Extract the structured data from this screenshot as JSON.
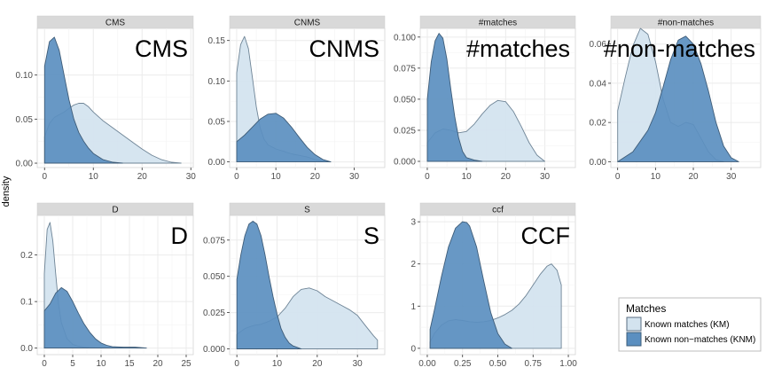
{
  "chart_data": {
    "type": "area",
    "ylabel": "density",
    "colors": {
      "km": "#d3e3ef",
      "knm": "#5b8fc0",
      "strip": "#d9d9d9",
      "grid": "#ebebeb"
    },
    "legend": {
      "title": "Matches",
      "placement": "bottom-right",
      "entries": [
        "Known matches (KM)",
        "Known non−matches (KNM)"
      ]
    },
    "panels": [
      {
        "strip": "CMS",
        "label": "CMS",
        "xlim": [
          -1.5,
          30.5
        ],
        "ylim": [
          -0.005,
          0.153
        ],
        "x_ticks": [
          0,
          10,
          20,
          30
        ],
        "y_ticks": [
          0.0,
          0.05,
          0.1
        ],
        "y_labels": [
          "0.00",
          "0.05",
          "0.10"
        ],
        "km": {
          "x": [
            0,
            1,
            2,
            3,
            4,
            5,
            6,
            7,
            8,
            9,
            10,
            12,
            14,
            16,
            18,
            20,
            22,
            24,
            26,
            28
          ],
          "y": [
            0.03,
            0.045,
            0.052,
            0.055,
            0.058,
            0.062,
            0.066,
            0.068,
            0.068,
            0.064,
            0.058,
            0.048,
            0.04,
            0.032,
            0.024,
            0.016,
            0.009,
            0.004,
            0.001,
            0.0
          ]
        },
        "knm": {
          "x": [
            0,
            1,
            2,
            3,
            4,
            5,
            6,
            7,
            8,
            9,
            10,
            12,
            14,
            16
          ],
          "y": [
            0.11,
            0.138,
            0.143,
            0.128,
            0.1,
            0.072,
            0.05,
            0.035,
            0.025,
            0.017,
            0.011,
            0.004,
            0.001,
            0.0
          ]
        }
      },
      {
        "strip": "CNMS",
        "label": "CNMS",
        "xlim": [
          -1.8,
          37.8
        ],
        "ylim": [
          -0.007,
          0.165
        ],
        "x_ticks": [
          0,
          10,
          20,
          30
        ],
        "y_ticks": [
          0.0,
          0.05,
          0.1,
          0.15
        ],
        "y_labels": [
          "0.00",
          "0.05",
          "0.10",
          "0.15"
        ],
        "km": {
          "x": [
            0,
            1,
            2,
            3,
            4,
            5,
            6,
            7,
            8,
            10,
            12,
            14,
            16,
            18,
            20,
            22,
            24
          ],
          "y": [
            0.11,
            0.145,
            0.155,
            0.14,
            0.105,
            0.068,
            0.042,
            0.028,
            0.021,
            0.016,
            0.013,
            0.01,
            0.008,
            0.006,
            0.003,
            0.001,
            0.0
          ]
        },
        "knm": {
          "x": [
            0,
            2,
            4,
            6,
            8,
            10,
            12,
            14,
            16,
            18,
            20,
            22,
            24
          ],
          "y": [
            0.025,
            0.033,
            0.043,
            0.053,
            0.059,
            0.06,
            0.054,
            0.043,
            0.03,
            0.018,
            0.009,
            0.003,
            0.0
          ]
        }
      },
      {
        "strip": "#matches",
        "label": "#matches",
        "xlim": [
          -1.8,
          37.8
        ],
        "ylim": [
          -0.005,
          0.107
        ],
        "x_ticks": [
          0,
          10,
          20,
          30
        ],
        "y_ticks": [
          0.0,
          0.025,
          0.05,
          0.075,
          0.1
        ],
        "y_labels": [
          "0.000",
          "0.025",
          "0.050",
          "0.075",
          "0.100"
        ],
        "km": {
          "x": [
            0,
            2,
            4,
            6,
            8,
            10,
            12,
            14,
            16,
            18,
            20,
            22,
            24,
            26,
            28,
            30
          ],
          "y": [
            0.015,
            0.023,
            0.026,
            0.025,
            0.023,
            0.024,
            0.03,
            0.038,
            0.045,
            0.049,
            0.048,
            0.04,
            0.028,
            0.015,
            0.005,
            0.0
          ]
        },
        "knm": {
          "x": [
            0,
            1,
            2,
            3,
            4,
            5,
            6,
            7,
            8,
            9,
            10,
            12,
            14
          ],
          "y": [
            0.05,
            0.08,
            0.097,
            0.103,
            0.099,
            0.082,
            0.058,
            0.036,
            0.019,
            0.008,
            0.003,
            0.001,
            0.0
          ]
        }
      },
      {
        "strip": "#non-matches",
        "label": "#non-matches",
        "xlim": [
          -1.8,
          37.8
        ],
        "ylim": [
          -0.003,
          0.068
        ],
        "x_ticks": [
          0,
          10,
          20,
          30
        ],
        "y_ticks": [
          0.0,
          0.02,
          0.04,
          0.06
        ],
        "y_labels": [
          "0.00",
          "0.02",
          "0.04",
          "0.06"
        ],
        "km": {
          "x": [
            0,
            2,
            4,
            6,
            8,
            10,
            12,
            14,
            16,
            18,
            20,
            22,
            24,
            26,
            28
          ],
          "y": [
            0.026,
            0.043,
            0.059,
            0.068,
            0.065,
            0.051,
            0.032,
            0.02,
            0.018,
            0.02,
            0.019,
            0.012,
            0.005,
            0.001,
            0.0
          ]
        },
        "knm": {
          "x": [
            0,
            4,
            8,
            10,
            12,
            14,
            16,
            18,
            20,
            22,
            24,
            26,
            28,
            30,
            32
          ],
          "y": [
            0.0,
            0.005,
            0.016,
            0.025,
            0.038,
            0.052,
            0.062,
            0.064,
            0.06,
            0.05,
            0.036,
            0.02,
            0.008,
            0.002,
            0.0
          ]
        }
      },
      {
        "strip": "D",
        "label": "D",
        "xlim": [
          -1.25,
          26.25
        ],
        "ylim": [
          -0.014,
          0.285
        ],
        "x_ticks": [
          0,
          5,
          10,
          15,
          20,
          25
        ],
        "y_ticks": [
          0.0,
          0.1,
          0.2
        ],
        "y_labels": [
          "0.0",
          "0.1",
          "0.2"
        ],
        "km": {
          "x": [
            0,
            0.5,
            1,
            1.5,
            2,
            2.5,
            3,
            4,
            5,
            6,
            7,
            8,
            10,
            12
          ],
          "y": [
            0.16,
            0.255,
            0.27,
            0.23,
            0.16,
            0.095,
            0.055,
            0.02,
            0.008,
            0.004,
            0.002,
            0.001,
            0.0,
            0.0
          ]
        },
        "knm": {
          "x": [
            0,
            1,
            2,
            3,
            4,
            5,
            6,
            7,
            8,
            9,
            10,
            11,
            12,
            14,
            16,
            18
          ],
          "y": [
            0.08,
            0.095,
            0.118,
            0.13,
            0.122,
            0.1,
            0.075,
            0.052,
            0.034,
            0.02,
            0.011,
            0.006,
            0.003,
            0.002,
            0.002,
            0.0
          ]
        }
      },
      {
        "strip": "S",
        "label": "S",
        "xlim": [
          -1.8,
          36.8
        ],
        "ylim": [
          -0.004,
          0.092
        ],
        "x_ticks": [
          0,
          10,
          20,
          30
        ],
        "y_ticks": [
          0.0,
          0.025,
          0.05,
          0.075
        ],
        "y_labels": [
          "0.000",
          "0.025",
          "0.050",
          "0.075"
        ],
        "km": {
          "x": [
            0,
            2,
            4,
            6,
            8,
            10,
            12,
            14,
            16,
            18,
            20,
            22,
            24,
            26,
            28,
            30,
            32,
            34,
            35
          ],
          "y": [
            0.01,
            0.014,
            0.016,
            0.017,
            0.019,
            0.022,
            0.028,
            0.036,
            0.041,
            0.042,
            0.04,
            0.036,
            0.033,
            0.03,
            0.027,
            0.023,
            0.016,
            0.009,
            0.006
          ]
        },
        "knm": {
          "x": [
            0,
            1,
            2,
            3,
            4,
            5,
            6,
            7,
            8,
            9,
            10,
            11,
            12,
            13,
            14,
            15,
            16
          ],
          "y": [
            0.048,
            0.065,
            0.078,
            0.086,
            0.088,
            0.086,
            0.078,
            0.065,
            0.05,
            0.036,
            0.024,
            0.014,
            0.008,
            0.004,
            0.002,
            0.001,
            0.0
          ]
        }
      },
      {
        "strip": "ccf",
        "label": "CCF",
        "xlim": [
          -0.05,
          1.05
        ],
        "ylim": [
          -0.15,
          3.15
        ],
        "x_ticks": [
          0.0,
          0.25,
          0.5,
          0.75,
          1.0
        ],
        "x_labels": [
          "0.00",
          "0.25",
          "0.50",
          "0.75",
          "1.00"
        ],
        "y_ticks": [
          0,
          1,
          2,
          3
        ],
        "y_labels": [
          "0",
          "1",
          "2",
          "3"
        ],
        "km": {
          "x": [
            0.02,
            0.05,
            0.1,
            0.15,
            0.2,
            0.25,
            0.3,
            0.35,
            0.4,
            0.45,
            0.5,
            0.55,
            0.6,
            0.65,
            0.7,
            0.75,
            0.8,
            0.85,
            0.88,
            0.92,
            0.95
          ],
          "y": [
            0.15,
            0.35,
            0.55,
            0.65,
            0.68,
            0.66,
            0.63,
            0.62,
            0.63,
            0.66,
            0.72,
            0.8,
            0.9,
            1.05,
            1.25,
            1.5,
            1.75,
            1.95,
            2.0,
            1.85,
            1.5
          ]
        },
        "knm": {
          "x": [
            0.02,
            0.05,
            0.1,
            0.15,
            0.2,
            0.25,
            0.28,
            0.3,
            0.35,
            0.4,
            0.45,
            0.5,
            0.55,
            0.6
          ],
          "y": [
            0.45,
            0.9,
            1.7,
            2.4,
            2.85,
            3.0,
            2.98,
            2.9,
            2.4,
            1.6,
            0.85,
            0.35,
            0.1,
            0.0
          ]
        }
      }
    ]
  }
}
